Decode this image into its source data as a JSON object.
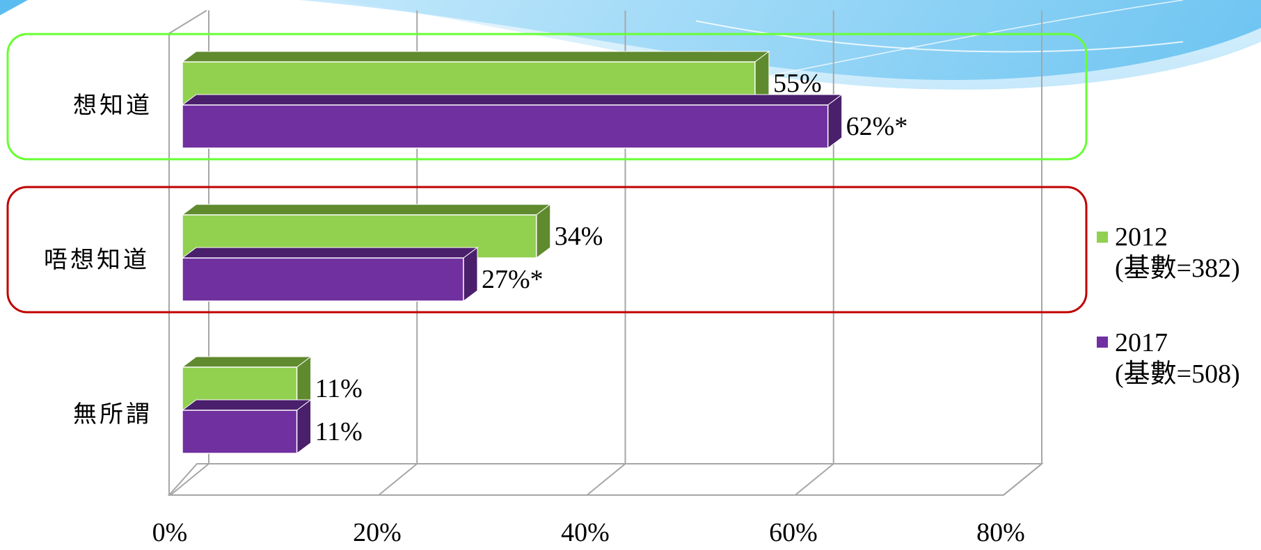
{
  "chart_data": {
    "type": "bar",
    "orientation": "horizontal",
    "style": "3d",
    "categories": [
      "想知道",
      "唔想知道",
      "無所謂"
    ],
    "series": [
      {
        "name": "2012",
        "note": "(基數=382)",
        "color": "#92d050",
        "values": [
          55,
          34,
          11
        ],
        "labels": [
          "55%",
          "34%",
          "11%"
        ]
      },
      {
        "name": "2017",
        "note": "(基數=508)",
        "color": "#7030a0",
        "values": [
          62,
          27,
          11
        ],
        "labels": [
          "62%*",
          "27%*",
          "11%"
        ]
      }
    ],
    "x_ticks": [
      "0%",
      "20%",
      "40%",
      "60%",
      "80%"
    ],
    "xlim": [
      0,
      80
    ],
    "grid": true,
    "legend_position": "right",
    "highlights": [
      {
        "category": "想知道",
        "color": "#66ff33"
      },
      {
        "category": "唔想知道",
        "color": "#c00000"
      }
    ]
  }
}
